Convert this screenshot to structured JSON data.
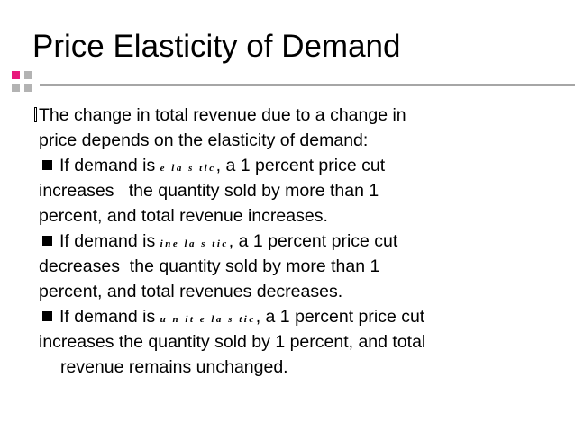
{
  "slide": {
    "title": "Price Elasticity of Demand",
    "paragraph": {
      "line1": "The change in total revenue due to a change in",
      "line2": "price depends on the elasticity of demand:"
    },
    "bullets": [
      {
        "prefix": "If demand is ",
        "term": "e la s tic",
        "suffix": ", a 1 percent price cut",
        "line2": "increases   the quantity sold by more than 1",
        "line3": "percent, and total revenue increases."
      },
      {
        "prefix": "If demand is ",
        "term": "ine la s tic",
        "suffix": ", a 1 percent price cut",
        "line2": "decreases  the quantity sold by more than 1",
        "line3": "percent, and total revenues decreases."
      },
      {
        "prefix": "If demand is ",
        "term": "u n it e la s tic",
        "suffix": ", a 1 percent price cut",
        "line2": "increases the quantity sold by 1 percent, and total",
        "line3": "revenue remains unchanged."
      }
    ]
  },
  "colors": {
    "accent_pink": "#e8197c",
    "accent_gray": "#b3b3b3",
    "rule": "#a6a6a6"
  }
}
